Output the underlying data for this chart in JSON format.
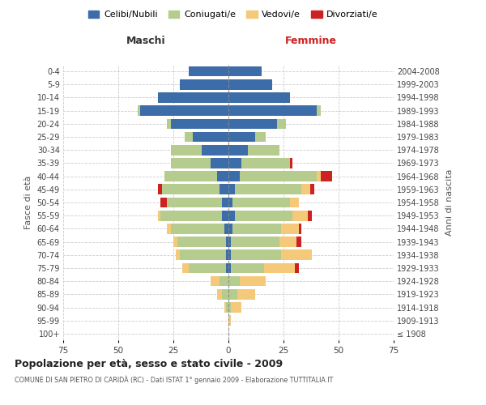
{
  "age_groups": [
    "100+",
    "95-99",
    "90-94",
    "85-89",
    "80-84",
    "75-79",
    "70-74",
    "65-69",
    "60-64",
    "55-59",
    "50-54",
    "45-49",
    "40-44",
    "35-39",
    "30-34",
    "25-29",
    "20-24",
    "15-19",
    "10-14",
    "5-9",
    "0-4"
  ],
  "birth_years": [
    "≤ 1908",
    "1909-1913",
    "1914-1918",
    "1919-1923",
    "1924-1928",
    "1929-1933",
    "1934-1938",
    "1939-1943",
    "1944-1948",
    "1949-1953",
    "1954-1958",
    "1959-1963",
    "1964-1968",
    "1969-1973",
    "1974-1978",
    "1979-1983",
    "1984-1988",
    "1989-1993",
    "1994-1998",
    "1999-2003",
    "2004-2008"
  ],
  "males": {
    "celibi": [
      0,
      0,
      0,
      0,
      0,
      1,
      1,
      1,
      2,
      3,
      3,
      4,
      5,
      8,
      12,
      16,
      26,
      40,
      32,
      22,
      18
    ],
    "coniugati": [
      0,
      0,
      1,
      3,
      4,
      17,
      21,
      22,
      24,
      28,
      25,
      26,
      24,
      18,
      14,
      4,
      2,
      1,
      0,
      0,
      0
    ],
    "vedovi": [
      0,
      0,
      1,
      2,
      4,
      3,
      2,
      2,
      2,
      1,
      0,
      0,
      0,
      0,
      0,
      0,
      0,
      0,
      0,
      0,
      0
    ],
    "divorziati": [
      0,
      0,
      0,
      0,
      0,
      0,
      0,
      0,
      0,
      0,
      3,
      2,
      0,
      0,
      0,
      0,
      0,
      0,
      0,
      0,
      0
    ]
  },
  "females": {
    "nubili": [
      0,
      0,
      0,
      0,
      0,
      1,
      1,
      1,
      2,
      3,
      2,
      3,
      5,
      6,
      9,
      12,
      22,
      40,
      28,
      20,
      15
    ],
    "coniugate": [
      0,
      0,
      1,
      4,
      5,
      15,
      23,
      22,
      22,
      26,
      26,
      30,
      35,
      22,
      14,
      5,
      4,
      2,
      0,
      0,
      0
    ],
    "vedove": [
      0,
      1,
      5,
      8,
      12,
      14,
      14,
      8,
      8,
      7,
      4,
      4,
      2,
      0,
      0,
      0,
      0,
      0,
      0,
      0,
      0
    ],
    "divorziate": [
      0,
      0,
      0,
      0,
      0,
      2,
      0,
      2,
      1,
      2,
      0,
      2,
      5,
      1,
      0,
      0,
      0,
      0,
      0,
      0,
      0
    ]
  },
  "colors": {
    "celibi_nubili": "#3C6DA8",
    "coniugati": "#B5CC8E",
    "vedovi": "#F5C97A",
    "divorziati": "#CC2222"
  },
  "xlim": 75,
  "title": "Popolazione per età, sesso e stato civile - 2009",
  "subtitle": "COMUNE DI SAN PIETRO DI CARIDÀ (RC) - Dati ISTAT 1° gennaio 2009 - Elaborazione TUTTITALIA.IT",
  "ylabel_left": "Fasce di età",
  "ylabel_right": "Anni di nascita",
  "xlabel_left": "Maschi",
  "xlabel_right": "Femmine",
  "legend_labels": [
    "Celibi/Nubili",
    "Coniugati/e",
    "Vedovi/e",
    "Divorziati/e"
  ]
}
